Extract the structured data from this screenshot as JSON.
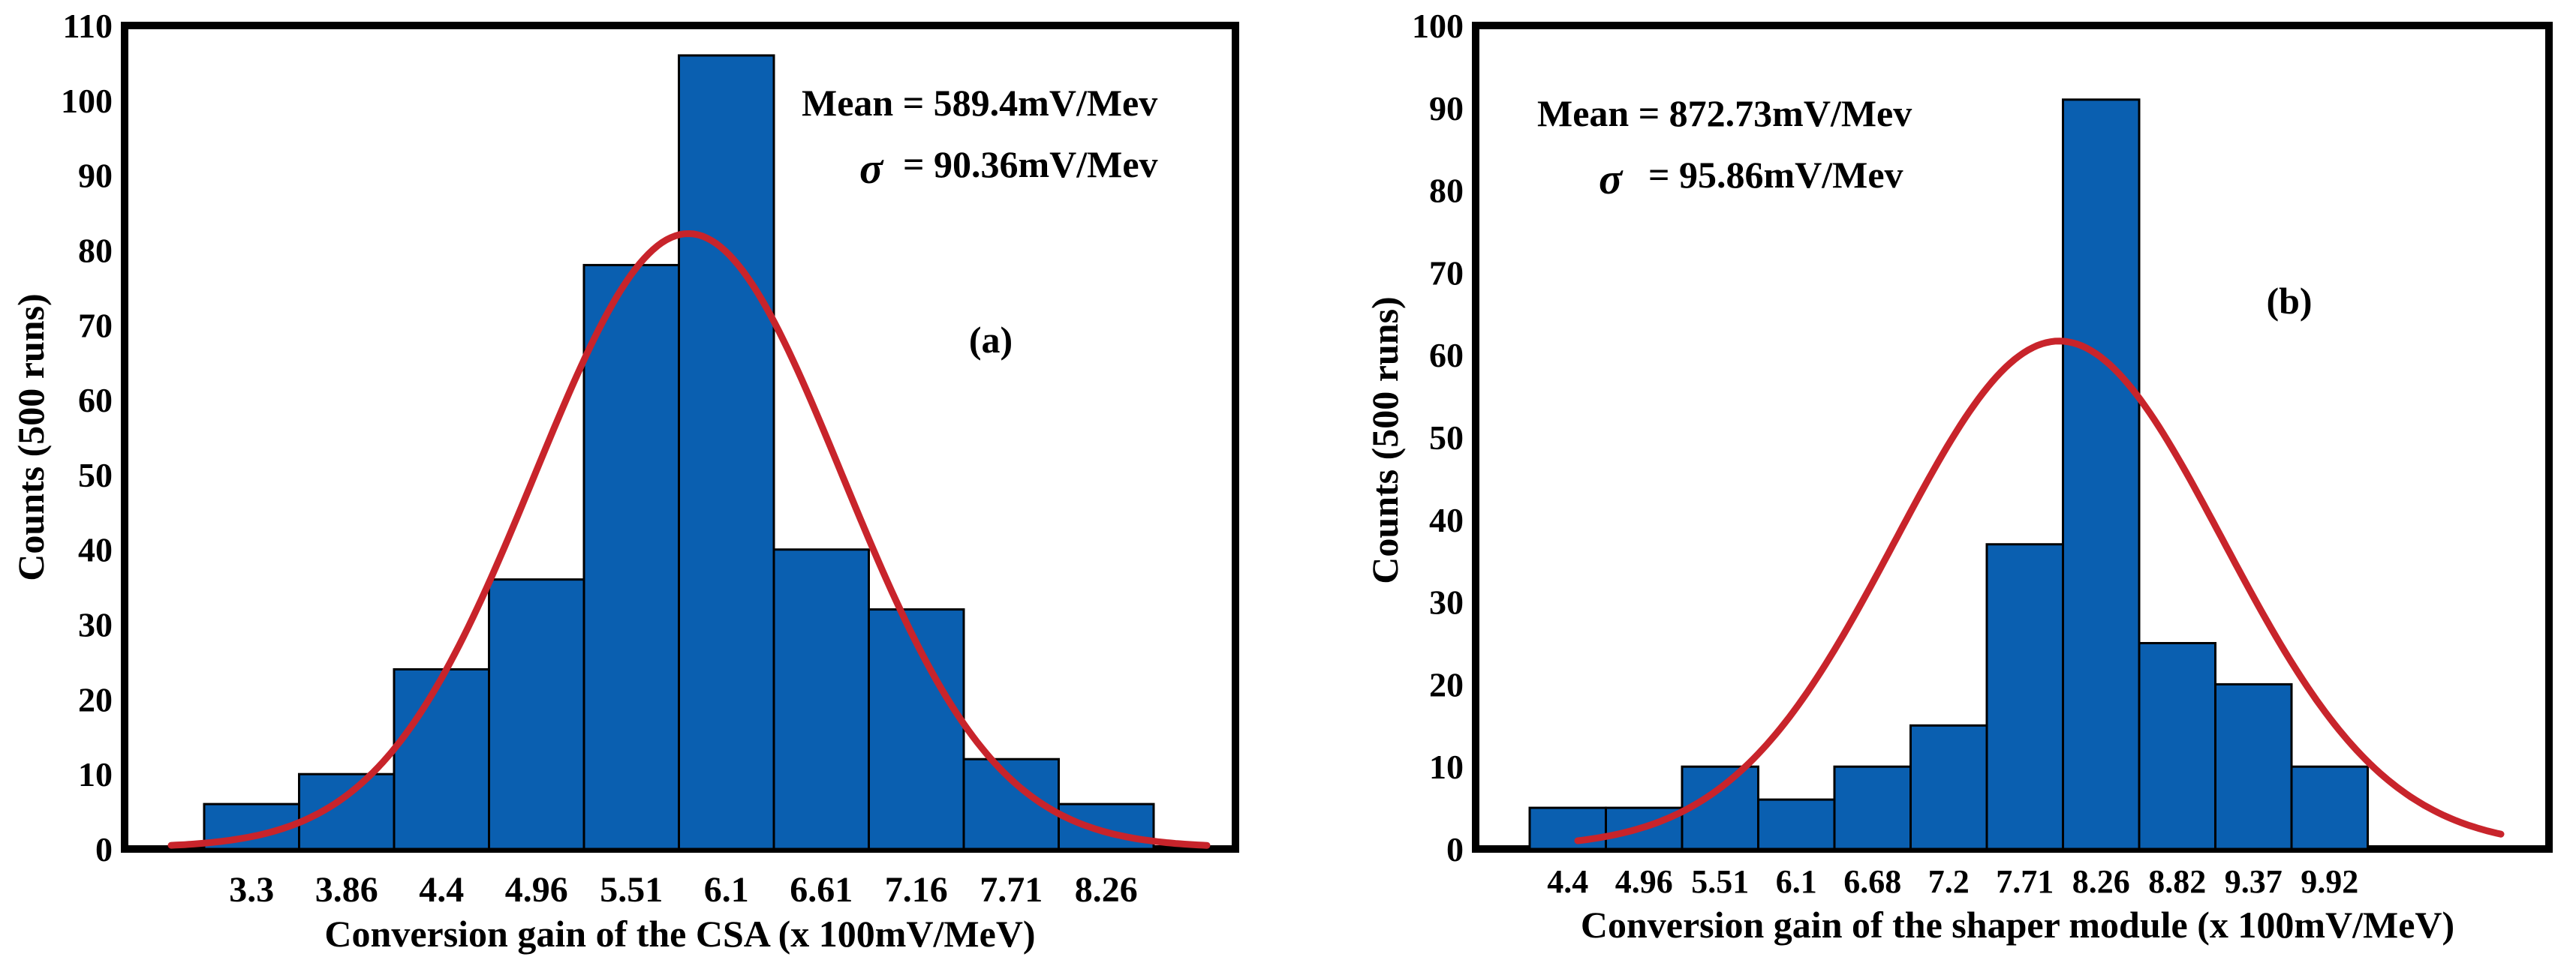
{
  "colors": {
    "bar": "#0a5fb0",
    "bar_edge": "#000000",
    "curve": "#c8242b",
    "axis": "#000000"
  },
  "chart_data": [
    {
      "type": "bar",
      "panel": "(a)",
      "title": "",
      "xlabel": "Conversion gain of the CSA (x 100mV/MeV)",
      "ylabel": "Counts (500 runs)",
      "ylim": [
        0,
        110
      ],
      "yticks": [
        0,
        10,
        20,
        30,
        40,
        50,
        60,
        70,
        80,
        90,
        100,
        110
      ],
      "categories": [
        "3.3",
        "3.86",
        "4.4",
        "4.96",
        "5.51",
        "6.1",
        "6.61",
        "7.16",
        "7.71",
        "8.26"
      ],
      "values": [
        6,
        10,
        24,
        36,
        78,
        106,
        40,
        32,
        12,
        6
      ],
      "fit": {
        "type": "gaussian",
        "peak": 82,
        "center_bar_index": 5.1,
        "sigma_bars": 1.62
      },
      "annotations": {
        "mean": "Mean = 589.4mV/Mev",
        "sigma_symbol": "σ",
        "sigma": "=  90.36mV/Mev"
      }
    },
    {
      "type": "bar",
      "panel": "(b)",
      "title": "",
      "xlabel": "Conversion gain of the shaper module (x 100mV/MeV)",
      "ylabel": "Counts (500 runs)",
      "ylim": [
        0,
        100
      ],
      "yticks": [
        0,
        10,
        20,
        30,
        40,
        50,
        60,
        70,
        80,
        90,
        100
      ],
      "categories": [
        "4.4",
        "4.96",
        "5.51",
        "6.1",
        "6.68",
        "7.2",
        "7.71",
        "8.26",
        "8.82",
        "9.37",
        "9.92"
      ],
      "values": [
        5,
        5,
        10,
        6,
        10,
        15,
        37,
        91,
        25,
        20,
        10
      ],
      "fit": {
        "type": "gaussian",
        "peak": 61.5,
        "center_bar_index": 6.95,
        "sigma_bars": 2.15
      },
      "annotations": {
        "mean": "Mean = 872.73mV/Mev",
        "sigma_symbol": "σ",
        "sigma": "= 95.86mV/Mev"
      }
    }
  ]
}
